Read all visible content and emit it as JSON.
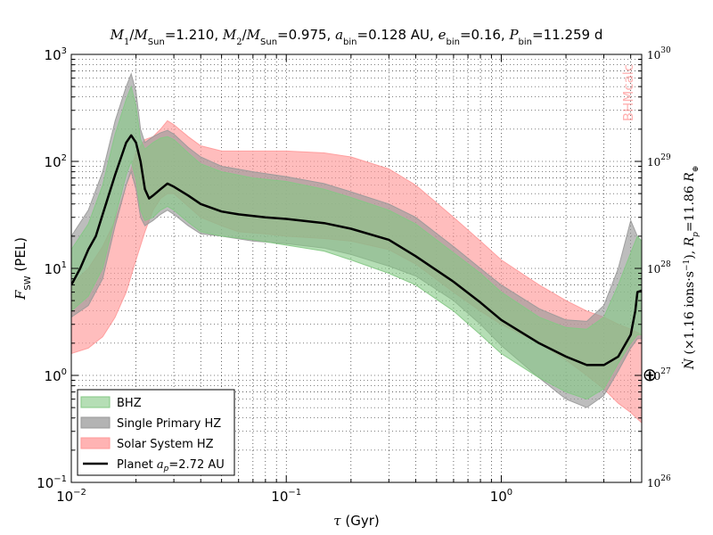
{
  "chart_data": {
    "type": "area",
    "title": "M₁/M_Sun=1.210, M₂/M_Sun=0.975, a_bin=0.128 AU, e_bin=0.16, P_bin=11.259 d",
    "xlabel": "τ (Gyr)",
    "ylabel": "F_SW (PEL)",
    "right_ylabel": "Ṅ (×1.16  ions·s⁻¹), R_p=11.86 R_⊕",
    "xscale": "log",
    "yscale": "log",
    "xlim": [
      0.01,
      4.5
    ],
    "ylim": [
      0.1,
      1000
    ],
    "grid": true,
    "legend_position": "lower-left",
    "watermark": "BHMcalc",
    "x_ticks": [
      {
        "base": "10",
        "exp": "-2",
        "value": 0.01
      },
      {
        "base": "10",
        "exp": "-1",
        "value": 0.1
      },
      {
        "base": "10",
        "exp": "0",
        "value": 1
      }
    ],
    "y_ticks": [
      {
        "base": "10",
        "exp": "-1",
        "value": 0.1
      },
      {
        "base": "10",
        "exp": "0",
        "value": 1
      },
      {
        "base": "10",
        "exp": "1",
        "value": 10
      },
      {
        "base": "10",
        "exp": "2",
        "value": 100
      },
      {
        "base": "10",
        "exp": "3",
        "value": 1000
      }
    ],
    "right_ticks": [
      {
        "base": "10",
        "exp": "26",
        "at": 0.1
      },
      {
        "base": "10",
        "exp": "27",
        "at": 1
      },
      {
        "base": "10",
        "exp": "28",
        "at": 10
      },
      {
        "base": "10",
        "exp": "29",
        "at": 100
      },
      {
        "base": "10",
        "exp": "30",
        "at": 1000
      }
    ],
    "series": [
      {
        "name": "Solar System HZ",
        "kind": "band",
        "color": "#ff9999",
        "x": [
          0.01,
          0.012,
          0.014,
          0.016,
          0.018,
          0.02,
          0.022,
          0.024,
          0.026,
          0.028,
          0.03,
          0.035,
          0.04,
          0.05,
          0.06,
          0.08,
          0.1,
          0.15,
          0.2,
          0.3,
          0.4,
          0.6,
          0.8,
          1.0,
          1.5,
          2.0,
          2.5,
          3.0,
          3.5,
          4.0,
          4.5
        ],
        "upper": [
          7.0,
          10.0,
          16.0,
          28.0,
          60.0,
          120.0,
          160.0,
          170.0,
          200.0,
          240.0,
          220.0,
          170.0,
          140.0,
          125.0,
          125.0,
          125.0,
          125.0,
          120.0,
          110.0,
          85.0,
          60.0,
          30.0,
          18.0,
          12.0,
          7.0,
          5.0,
          4.0,
          3.5,
          3.0,
          2.7,
          2.4
        ],
        "lower": [
          1.6,
          1.8,
          2.3,
          3.5,
          6.0,
          12.0,
          22.0,
          35.0,
          45.0,
          50.0,
          50.0,
          38.0,
          30.0,
          25.0,
          22.0,
          21.0,
          20.0,
          19.0,
          18.0,
          15.0,
          11.0,
          6.0,
          4.0,
          3.0,
          2.0,
          1.4,
          1.0,
          0.75,
          0.55,
          0.45,
          0.36
        ]
      },
      {
        "name": "Single Primary HZ",
        "kind": "band",
        "color": "#999999",
        "x": [
          0.01,
          0.012,
          0.014,
          0.016,
          0.018,
          0.019,
          0.02,
          0.021,
          0.022,
          0.024,
          0.026,
          0.028,
          0.03,
          0.035,
          0.04,
          0.05,
          0.07,
          0.1,
          0.15,
          0.2,
          0.3,
          0.4,
          0.6,
          0.8,
          1.0,
          1.5,
          2.0,
          2.5,
          3.0,
          3.5,
          4.0,
          4.3,
          4.5
        ],
        "upper": [
          20.0,
          35.0,
          80.0,
          240.0,
          500.0,
          660.0,
          450.0,
          200.0,
          150.0,
          170.0,
          185.0,
          195.0,
          180.0,
          135.0,
          110.0,
          90.0,
          80.0,
          72.0,
          62.0,
          52.0,
          40.0,
          30.0,
          16.0,
          10.0,
          7.0,
          4.2,
          3.3,
          3.2,
          4.5,
          10.0,
          28.0,
          20.0,
          18.0
        ],
        "lower": [
          3.5,
          4.5,
          8.0,
          25.0,
          60.0,
          80.0,
          55.0,
          30.0,
          25.0,
          28.0,
          32.0,
          35.0,
          32.0,
          25.0,
          21.0,
          20.0,
          18.0,
          17.0,
          15.5,
          13.5,
          10.5,
          8.5,
          5.0,
          3.0,
          1.9,
          0.95,
          0.6,
          0.5,
          0.65,
          1.1,
          1.8,
          2.2,
          2.2
        ]
      },
      {
        "name": "BHZ",
        "kind": "band",
        "color": "#84c884",
        "x": [
          0.01,
          0.012,
          0.014,
          0.016,
          0.018,
          0.019,
          0.02,
          0.021,
          0.022,
          0.024,
          0.026,
          0.028,
          0.03,
          0.035,
          0.04,
          0.05,
          0.07,
          0.1,
          0.15,
          0.2,
          0.3,
          0.4,
          0.6,
          0.8,
          1.0,
          1.5,
          2.0,
          2.5,
          3.0,
          3.5,
          4.0,
          4.3,
          4.5
        ],
        "upper": [
          15.0,
          26.0,
          60.0,
          180.0,
          380.0,
          500.0,
          330.0,
          160.0,
          130.0,
          150.0,
          165.0,
          170.0,
          160.0,
          120.0,
          95.0,
          80.0,
          70.0,
          65.0,
          55.0,
          46.0,
          35.0,
          26.0,
          14.0,
          9.0,
          6.0,
          3.5,
          2.8,
          2.7,
          3.5,
          7.0,
          14.0,
          20.0,
          18.0
        ],
        "lower": [
          4.0,
          5.5,
          10.0,
          30.0,
          75.0,
          100.0,
          68.0,
          35.0,
          28.0,
          30.0,
          35.0,
          38.0,
          35.0,
          27.0,
          22.0,
          20.0,
          18.5,
          16.5,
          14.5,
          12.0,
          9.0,
          7.0,
          4.0,
          2.4,
          1.6,
          0.95,
          0.7,
          0.6,
          0.75,
          1.3,
          2.0,
          2.4,
          2.4
        ]
      },
      {
        "name": "Planet",
        "name_suffix": "=2.72 AU",
        "kind": "line",
        "color": "#000000",
        "x": [
          0.01,
          0.011,
          0.012,
          0.013,
          0.014,
          0.016,
          0.018,
          0.019,
          0.02,
          0.021,
          0.022,
          0.023,
          0.024,
          0.026,
          0.028,
          0.03,
          0.035,
          0.04,
          0.05,
          0.06,
          0.08,
          0.1,
          0.15,
          0.2,
          0.3,
          0.4,
          0.6,
          0.8,
          1.0,
          1.5,
          2.0,
          2.5,
          3.0,
          3.5,
          4.0,
          4.2,
          4.3,
          4.5
        ],
        "y": [
          7.0,
          10.0,
          15.0,
          20.0,
          32.0,
          75.0,
          150.0,
          175.0,
          150.0,
          100.0,
          55.0,
          45.0,
          48.0,
          55.0,
          62.0,
          58.0,
          48.0,
          40.0,
          34.0,
          32.0,
          30.0,
          29.0,
          26.5,
          23.5,
          18.5,
          13.0,
          7.5,
          4.8,
          3.3,
          2.0,
          1.5,
          1.25,
          1.25,
          1.5,
          2.4,
          4.0,
          6.0,
          6.2
        ]
      }
    ]
  },
  "legend": {
    "items": [
      {
        "label": "BHZ",
        "color": "#84c884",
        "kind": "patch",
        "opacity": 0.6
      },
      {
        "label": "Single Primary HZ",
        "color": "#999999",
        "kind": "patch",
        "opacity": 0.75
      },
      {
        "label": "Solar System HZ",
        "color": "#ff9999",
        "kind": "patch",
        "opacity": 0.75
      },
      {
        "label_prefix": "Planet ",
        "label_var": "a",
        "label_sub": "p",
        "label_suffix": "=2.72 AU",
        "color": "#000000",
        "kind": "line"
      }
    ]
  },
  "earth_symbol": "⊕",
  "colors": {
    "watermark": "#ff6666",
    "solar_band": "#ff9999",
    "primary_band": "#999999",
    "bhz_band": "#84c884",
    "planet_line": "#000000"
  }
}
